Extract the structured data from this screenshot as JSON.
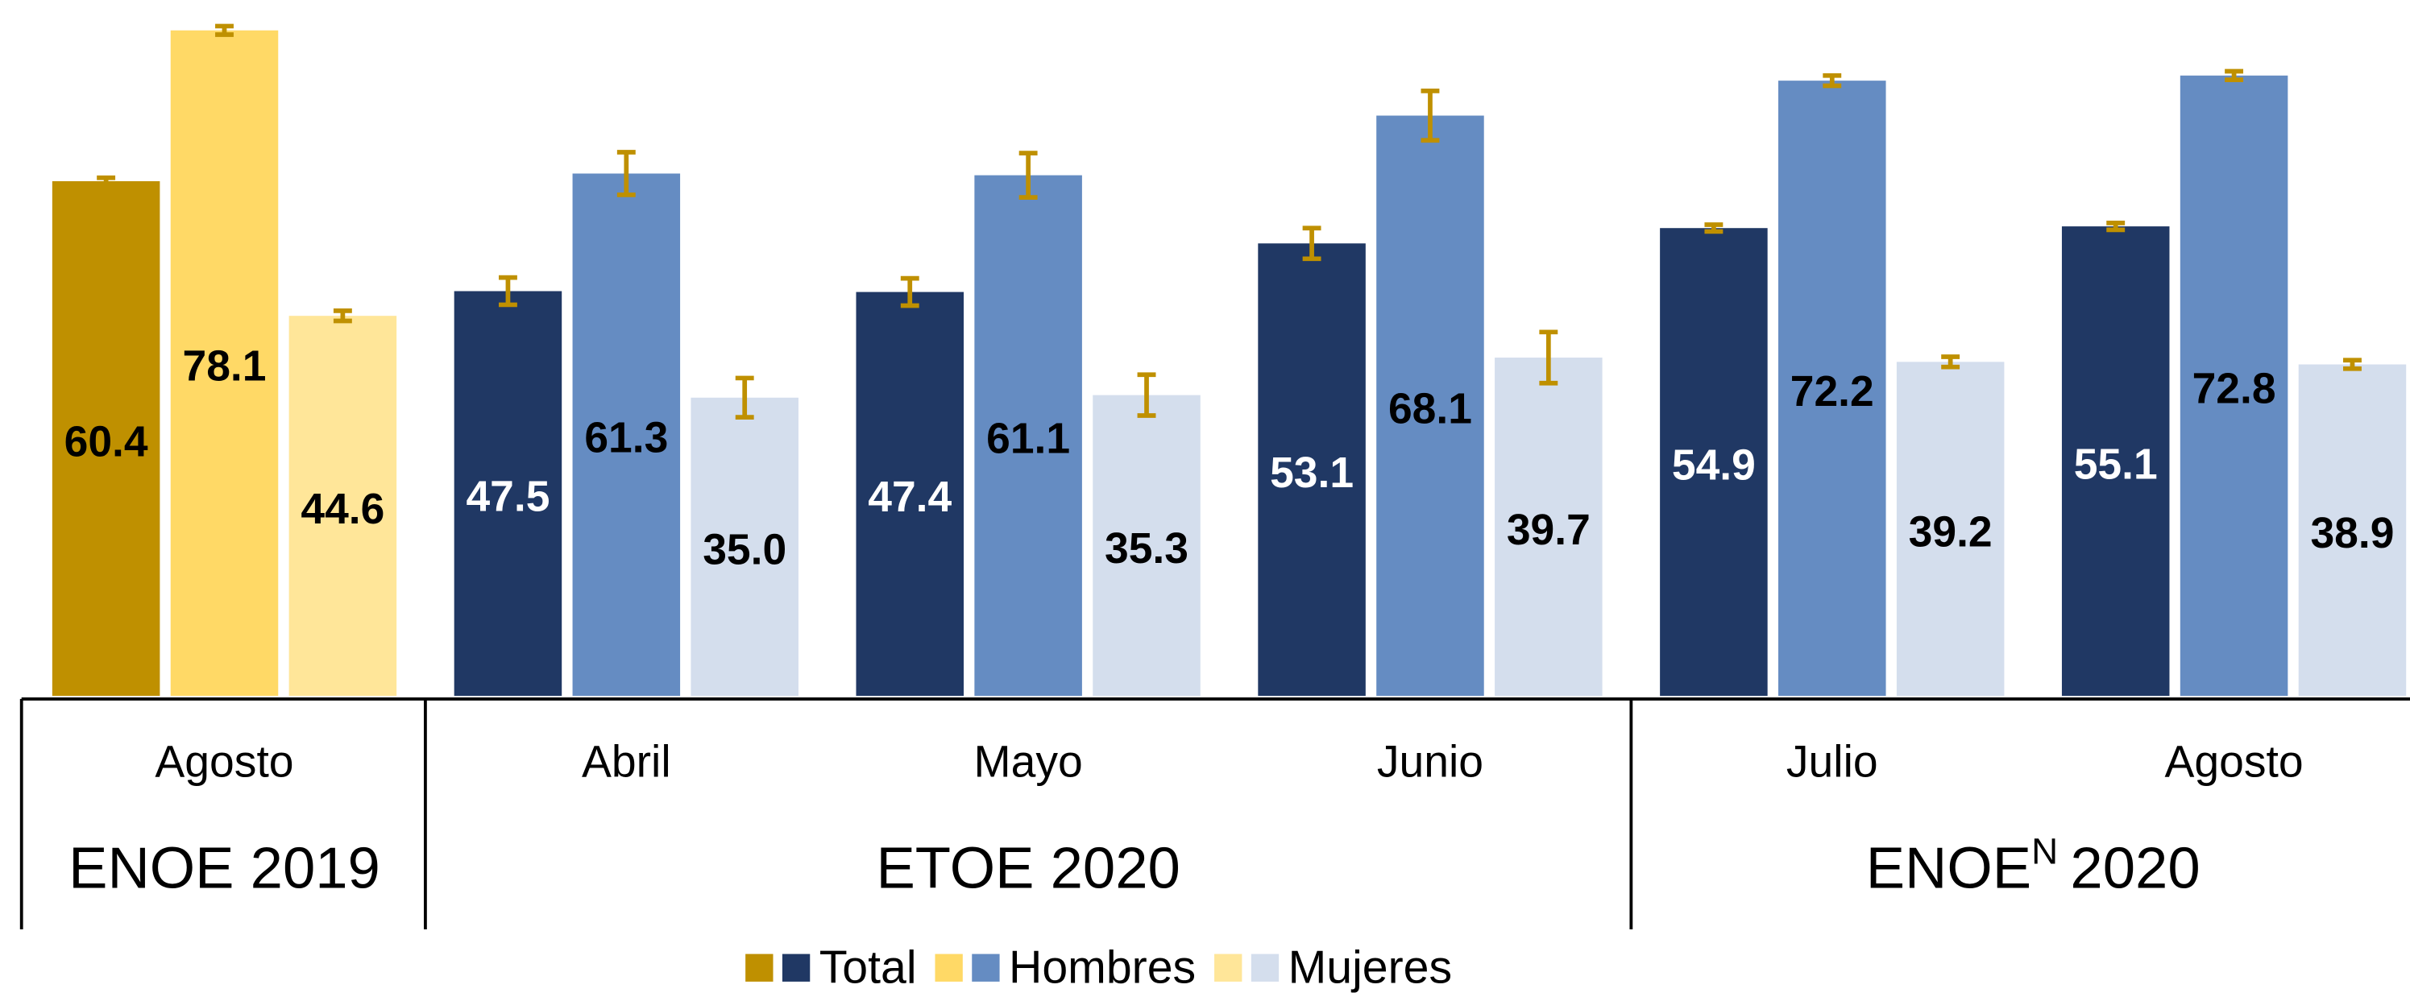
{
  "chart_data": {
    "type": "bar",
    "groups": [
      {
        "label": "ENOE 2019",
        "categories": [
          "Agosto"
        ]
      },
      {
        "label": "ETOE 2020",
        "categories": [
          "Abril",
          "Mayo",
          "Junio"
        ]
      },
      {
        "label": "ENOE",
        "superscript": "N",
        "label_suffix": "2020",
        "categories": [
          "Julio",
          "Agosto"
        ]
      }
    ],
    "series": [
      {
        "name": "Total",
        "colors": [
          "#bf9000",
          "#203864",
          "#203864",
          "#203864",
          "#203864",
          "#203864"
        ],
        "values": [
          60.4,
          47.5,
          47.4,
          53.1,
          54.9,
          55.1
        ],
        "errors": [
          0.4,
          1.6,
          1.6,
          1.8,
          0.4,
          0.4
        ]
      },
      {
        "name": "Hombres",
        "colors": [
          "#ffd966",
          "#658cc2",
          "#658cc2",
          "#658cc2",
          "#658cc2",
          "#658cc2"
        ],
        "values": [
          78.1,
          61.3,
          61.1,
          68.1,
          72.2,
          72.8
        ],
        "errors": [
          0.5,
          2.5,
          2.6,
          2.9,
          0.6,
          0.5
        ]
      },
      {
        "name": "Mujeres",
        "colors": [
          "#ffe699",
          "#d4deed",
          "#d4deed",
          "#d4deed",
          "#d4deed",
          "#d4deed"
        ],
        "values": [
          44.6,
          35.0,
          35.3,
          39.7,
          39.2,
          38.9
        ],
        "value_labels": [
          "44.6",
          "35.0",
          "35.3",
          "39.7",
          "39.2",
          "38.9"
        ],
        "errors": [
          0.6,
          2.3,
          2.4,
          3.0,
          0.6,
          0.5
        ]
      }
    ],
    "error_color": "#bf9000"
  }
}
